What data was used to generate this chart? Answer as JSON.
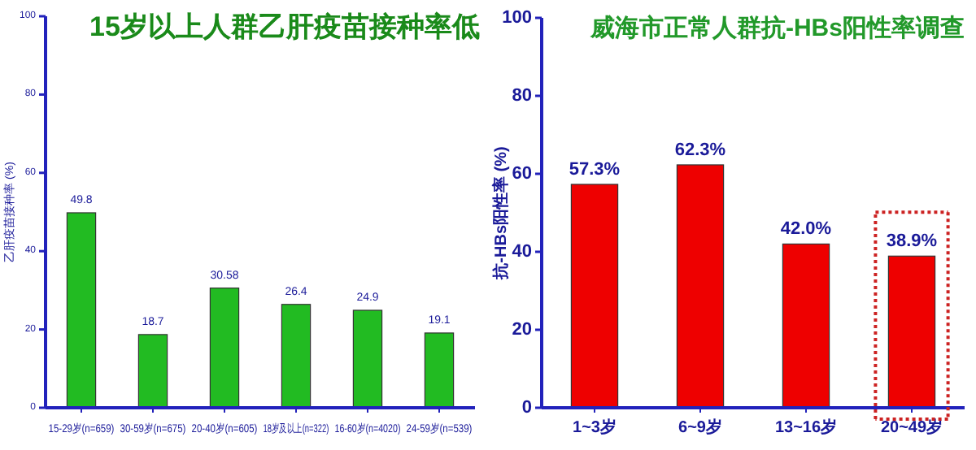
{
  "chart_data": [
    {
      "type": "bar",
      "title": "15岁以上人群乙肝疫苗接种率低",
      "ylabel": "乙肝疫苗接种率 (%)",
      "categories": [
        "15-29岁(n=659)",
        "30-59岁(n=675)",
        "20-40岁(n=605)",
        "18岁及以上(n=322)",
        "16-60岁(n=4020)",
        "24-59岁(n=539)"
      ],
      "values": [
        49.8,
        18.7,
        30.58,
        26.4,
        24.9,
        19.1
      ],
      "color": "#22bb22",
      "ylim": [
        0,
        100
      ],
      "yticks": [
        0,
        20,
        40,
        60,
        80,
        100
      ],
      "data_labels": true
    },
    {
      "type": "bar",
      "title": "威海市正常人群抗-HBs阳性率调查",
      "ylabel": "抗-HBs阳性率 (%)",
      "categories": [
        "1~3岁",
        "6~9岁",
        "13~16岁",
        "20~49岁"
      ],
      "values": [
        57.3,
        62.3,
        42.0,
        38.9
      ],
      "value_labels": [
        "57.3%",
        "62.3%",
        "42.0%",
        "38.9%"
      ],
      "color": "#ee0000",
      "ylim": [
        0,
        100
      ],
      "yticks": [
        0,
        20,
        40,
        60,
        80,
        100
      ]
    }
  ]
}
